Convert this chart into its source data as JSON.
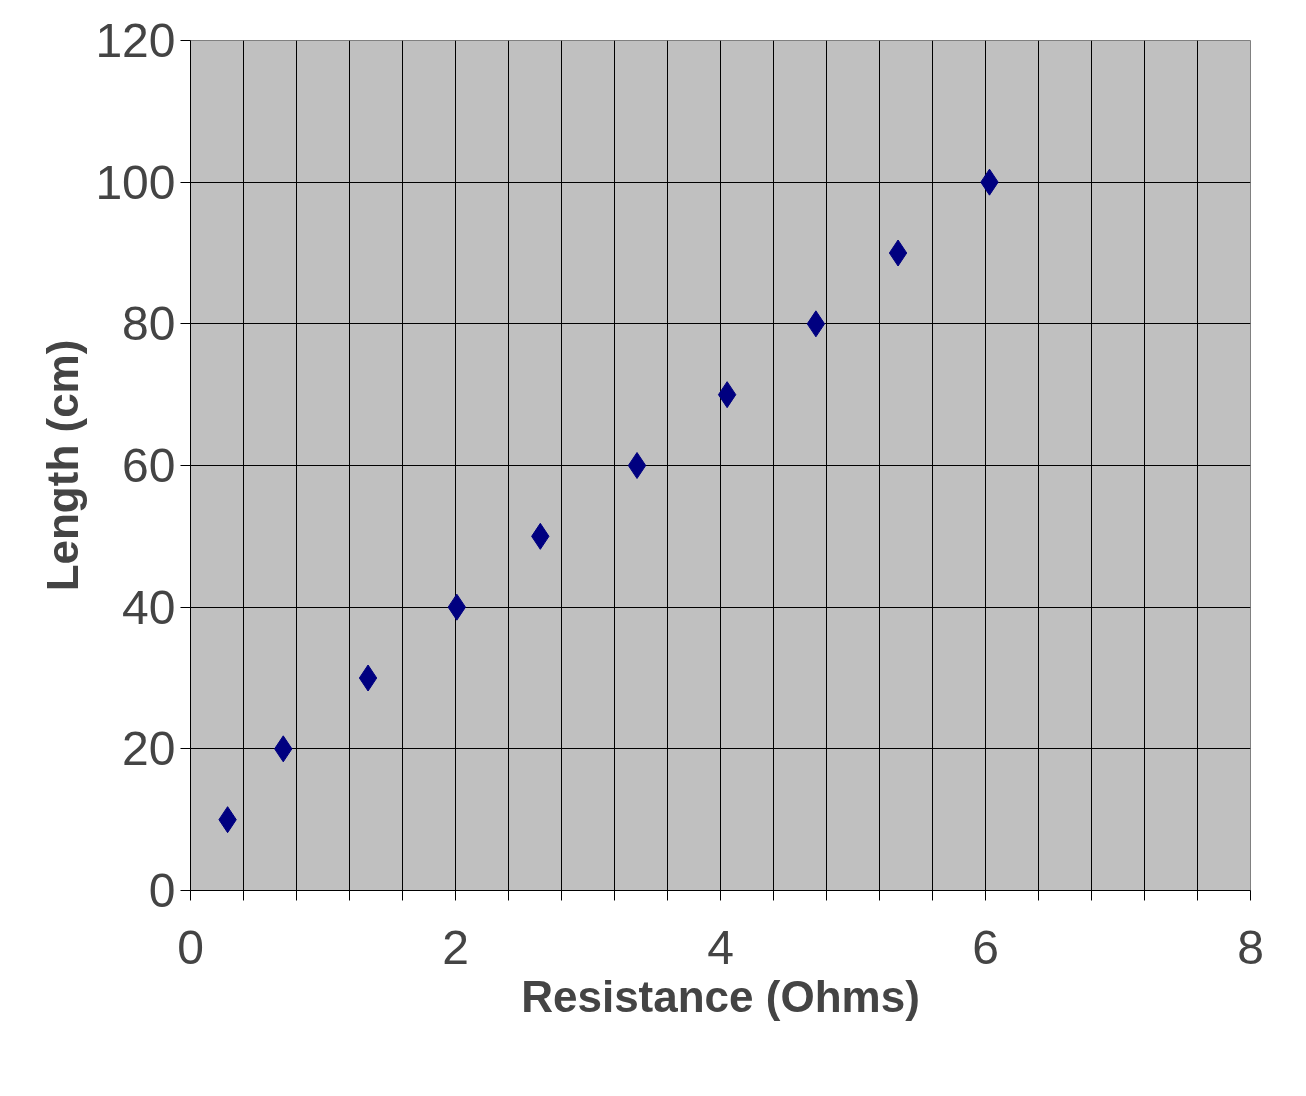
{
  "chart_data": {
    "type": "scatter",
    "xlabel": "Resistance (Ohms)",
    "ylabel": "Length (cm)",
    "x": [
      0.28,
      0.7,
      1.34,
      2.01,
      2.64,
      3.37,
      4.05,
      4.72,
      5.34,
      6.03
    ],
    "series": [
      {
        "color": "#000080",
        "values": [
          10,
          20,
          30,
          40,
          50,
          60,
          70,
          80,
          90,
          100
        ]
      }
    ],
    "xlim": [
      0,
      8
    ],
    "ylim": [
      0,
      120
    ],
    "xticks": [
      0,
      {
        "value": 0.4,
        "label": null
      },
      {
        "value": 0.8,
        "label": null
      },
      {
        "value": 1.2,
        "label": null
      },
      {
        "value": 1.6,
        "label": null
      },
      2,
      {
        "value": 2.4,
        "label": null
      },
      {
        "value": 2.8,
        "label": null
      },
      {
        "value": 3.2,
        "label": null
      },
      {
        "value": 3.6,
        "label": null
      },
      4,
      {
        "value": 4.4,
        "label": null
      },
      {
        "value": 4.8,
        "label": null
      },
      {
        "value": 5.2,
        "label": null
      },
      {
        "value": 5.6,
        "label": null
      },
      6,
      {
        "value": 6.4,
        "label": null
      },
      {
        "value": 6.8,
        "label": null
      },
      {
        "value": 7.2,
        "label": null
      },
      {
        "value": 7.6,
        "label": null
      },
      8
    ],
    "yticks": [
      0,
      20,
      40,
      60,
      80,
      100,
      120
    ],
    "grid": true,
    "marker": "diamond"
  }
}
